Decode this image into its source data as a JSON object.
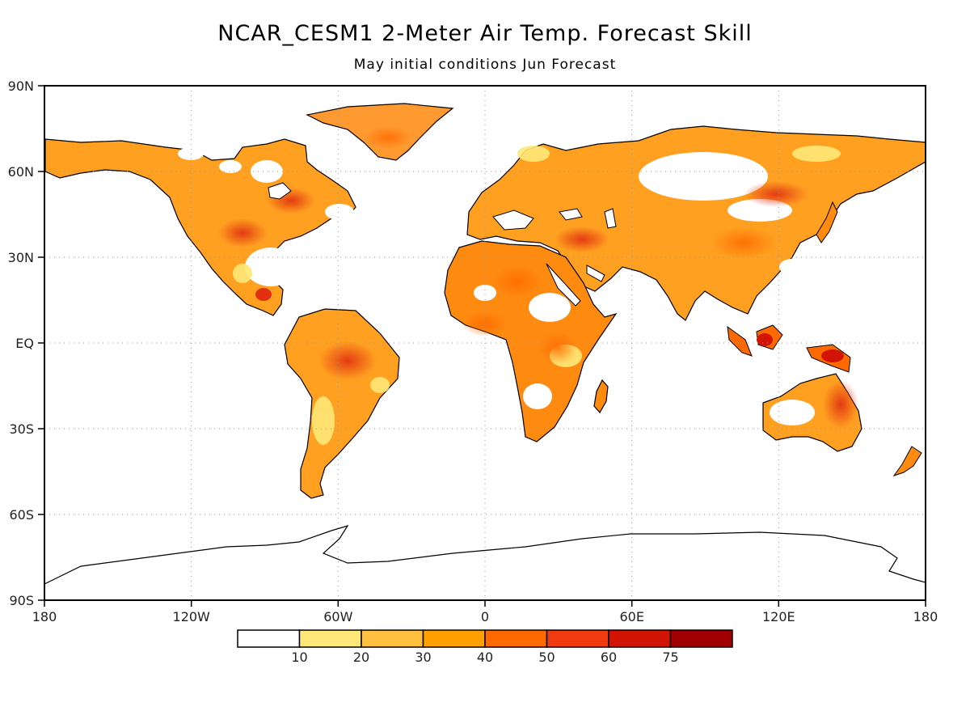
{
  "title": "NCAR_CESM1 2-Meter Air Temp. Forecast Skill",
  "subtitle": "May initial conditions   Jun Forecast",
  "map": {
    "lon_range": [
      -180,
      180
    ],
    "lat_range": [
      -90,
      90
    ],
    "grid": true,
    "lat_ticks": [
      "90N",
      "60N",
      "30N",
      "EQ",
      "30S",
      "60S",
      "90S"
    ],
    "lon_ticks": [
      "180",
      "120W",
      "60W",
      "0",
      "60E",
      "120E",
      "180"
    ]
  },
  "colorbar": {
    "labels": [
      "10",
      "20",
      "30",
      "40",
      "50",
      "60",
      "75"
    ],
    "colors": [
      "#ffffff",
      "#ffe878",
      "#ffc040",
      "#ffa000",
      "#ff6a00",
      "#f03a10",
      "#d21404",
      "#a00000"
    ]
  }
}
